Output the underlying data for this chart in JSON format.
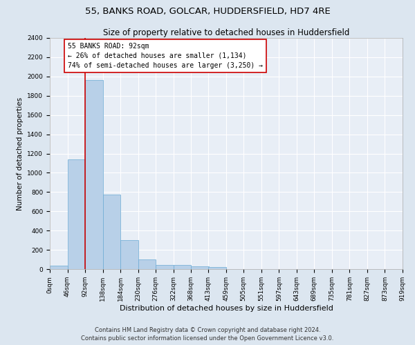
{
  "title": "55, BANKS ROAD, GOLCAR, HUDDERSFIELD, HD7 4RE",
  "subtitle": "Size of property relative to detached houses in Huddersfield",
  "xlabel": "Distribution of detached houses by size in Huddersfield",
  "ylabel": "Number of detached properties",
  "bin_edges": [
    0,
    46,
    92,
    138,
    184,
    230,
    276,
    322,
    368,
    413,
    459,
    505,
    551,
    597,
    643,
    689,
    735,
    781,
    827,
    873,
    919
  ],
  "bar_heights": [
    35,
    1140,
    1960,
    775,
    300,
    100,
    45,
    40,
    30,
    20,
    0,
    0,
    0,
    0,
    0,
    0,
    0,
    0,
    0,
    0
  ],
  "bar_color": "#b8d0e8",
  "bar_edge_color": "#6aaad4",
  "red_line_x": 92,
  "annotation_title": "55 BANKS ROAD: 92sqm",
  "annotation_line1": "← 26% of detached houses are smaller (1,134)",
  "annotation_line2": "74% of semi-detached houses are larger (3,250) →",
  "annotation_box_color": "#ffffff",
  "annotation_box_edge": "#cc0000",
  "red_line_color": "#cc0000",
  "ylim": [
    0,
    2400
  ],
  "yticks": [
    0,
    200,
    400,
    600,
    800,
    1000,
    1200,
    1400,
    1600,
    1800,
    2000,
    2200,
    2400
  ],
  "footer_line1": "Contains HM Land Registry data © Crown copyright and database right 2024.",
  "footer_line2": "Contains public sector information licensed under the Open Government Licence v3.0.",
  "bg_color": "#dce6f0",
  "plot_bg_color": "#e8eef6",
  "grid_color": "#ffffff",
  "title_fontsize": 9.5,
  "subtitle_fontsize": 8.5,
  "xlabel_fontsize": 8,
  "ylabel_fontsize": 7.5,
  "tick_fontsize": 6.5,
  "footer_fontsize": 6.0,
  "annotation_fontsize": 7.0
}
